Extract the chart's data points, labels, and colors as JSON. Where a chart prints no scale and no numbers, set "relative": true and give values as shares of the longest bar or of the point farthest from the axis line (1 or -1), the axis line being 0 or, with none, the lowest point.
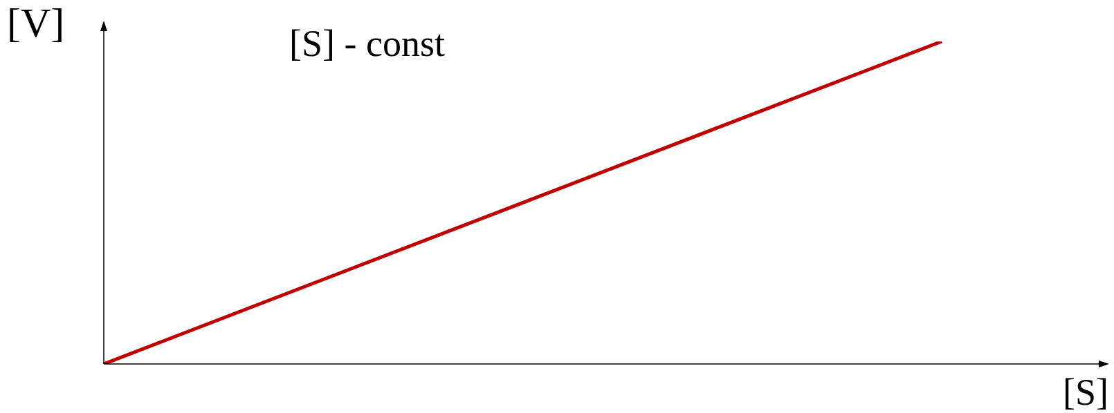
{
  "chart_data": {
    "type": "line",
    "relative": true,
    "xlabel": "[S]",
    "ylabel": "[V]",
    "annotations": [
      "[S] - const"
    ],
    "categories": [
      null,
      null
    ],
    "series": [
      {
        "color": "#c00000",
        "values": [
          0,
          1
        ]
      }
    ],
    "marker": "none",
    "line_style": "solid"
  }
}
